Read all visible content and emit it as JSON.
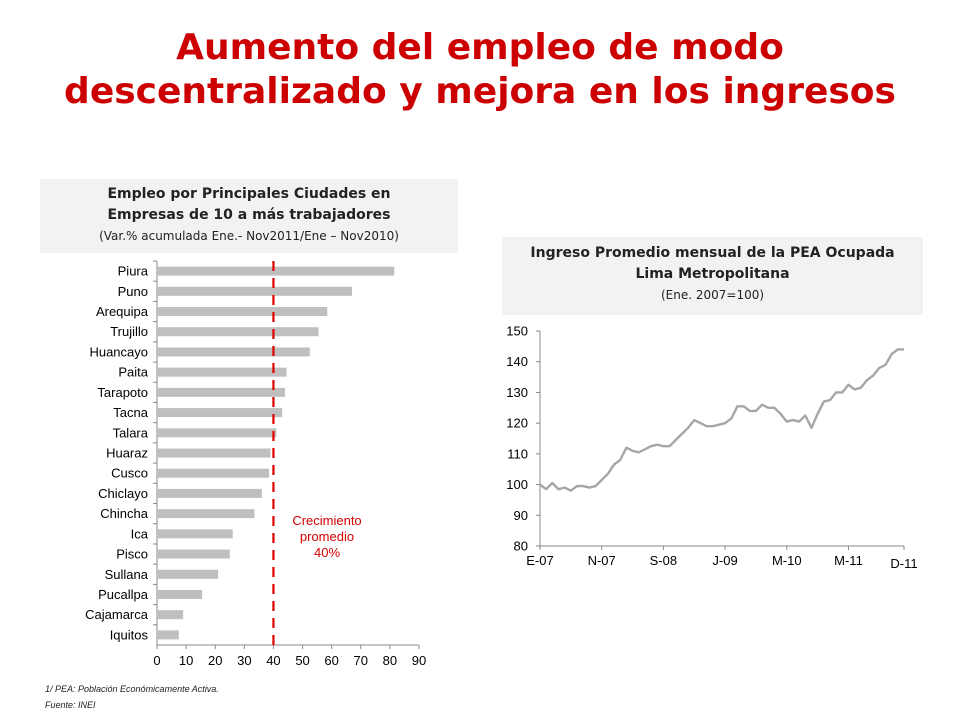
{
  "title": {
    "line1": "Aumento del empleo de modo",
    "line2": "descentralizado y mejora en los ingresos"
  },
  "colors": {
    "title": "#cc0000",
    "bar": "#bfbfbf",
    "line": "#a6a6a6",
    "reference": "#e00000"
  },
  "chart_data": [
    {
      "type": "bar",
      "orientation": "horizontal",
      "title_line1": "Empleo por Principales Ciudades en",
      "title_line2": "Empresas de 10 a más trabajadores",
      "subtitle": "(Var.% acumulada Ene.- Nov2011/Ene – Nov2010)",
      "categories": [
        "Piura",
        "Puno",
        "Arequipa",
        "Trujillo",
        "Huancayo",
        "Paita",
        "Tarapoto",
        "Tacna",
        "Talara",
        "Huaraz",
        "Cusco",
        "Chiclayo",
        "Chincha",
        "Ica",
        "Pisco",
        "Sullana",
        "Pucallpa",
        "Cajamarca",
        "Iquitos"
      ],
      "values": [
        81.5,
        67,
        58.5,
        55.5,
        52.5,
        44.5,
        44,
        43,
        41,
        39,
        38.5,
        36,
        33.5,
        26,
        25,
        21,
        15.5,
        9,
        7.5
      ],
      "xlim": [
        0,
        90
      ],
      "xticks": [
        "0",
        "10",
        "20",
        "30",
        "40",
        "50",
        "60",
        "70",
        "80",
        "90"
      ],
      "reference_line": {
        "value": 40,
        "label_line1": "Crecimiento",
        "label_line2": "promedio",
        "label_line3": "40%"
      }
    },
    {
      "type": "line",
      "title_line1": "Ingreso Promedio mensual de la PEA Ocupada",
      "title_line2": "Lima Metropolitana",
      "subtitle": "(Ene. 2007=100)",
      "ylim": [
        80,
        150
      ],
      "yticks": [
        "150",
        "140",
        "130",
        "120",
        "110",
        "100",
        "90",
        "80"
      ],
      "xtick_labels": [
        "E-07",
        "N-07",
        "S-08",
        "J-09",
        "M-10",
        "M-11",
        "D-11"
      ],
      "xtick_index": [
        0,
        10,
        20,
        30,
        40,
        50,
        59
      ],
      "values": [
        100,
        98.5,
        100.5,
        98.5,
        99,
        98,
        99.5,
        99.5,
        99,
        99.5,
        101.5,
        103.5,
        106.5,
        108,
        112,
        111,
        110.5,
        111.5,
        112.5,
        113,
        112.5,
        112.5,
        114.5,
        116.5,
        118.5,
        121,
        120,
        119,
        119,
        119.5,
        120,
        121.5,
        125.5,
        125.5,
        124,
        124,
        126,
        125,
        125,
        123,
        120.5,
        121,
        120.5,
        122.5,
        118.5,
        123,
        127,
        127.5,
        130,
        130,
        132.5,
        131,
        131.5,
        134,
        135.5,
        138,
        139,
        142.5,
        144,
        144
      ]
    }
  ],
  "footnotes": {
    "note": "1/ PEA: Población Económicamente Activa.",
    "source": "Fuente: INEI"
  }
}
